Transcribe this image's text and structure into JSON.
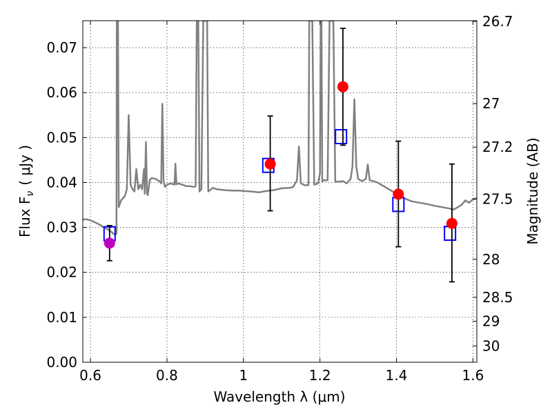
{
  "chart_data": {
    "type": "scatter",
    "xlabel": "Wavelength  λ (μm)",
    "ylabel_left": "Flux  F",
    "ylabel_left_sub": "ν",
    "ylabel_left_unit": "( μJy )",
    "ylabel_right": "Magnitude (AB)",
    "xlim": [
      0.58,
      1.61
    ],
    "ylim": [
      0.0,
      0.076
    ],
    "grid": true,
    "x_ticks": [
      {
        "value": 0.6,
        "label": "0.6"
      },
      {
        "value": 0.8,
        "label": "0.8"
      },
      {
        "value": 1.0,
        "label": "1"
      },
      {
        "value": 1.2,
        "label": "1.2"
      },
      {
        "value": 1.4,
        "label": "1.4"
      },
      {
        "value": 1.6,
        "label": "1.6"
      }
    ],
    "y_ticks": [
      {
        "value": 0.0,
        "label": "0.00"
      },
      {
        "value": 0.01,
        "label": "0.01"
      },
      {
        "value": 0.02,
        "label": "0.02"
      },
      {
        "value": 0.03,
        "label": "0.03"
      },
      {
        "value": 0.04,
        "label": "0.04"
      },
      {
        "value": 0.05,
        "label": "0.05"
      },
      {
        "value": 0.06,
        "label": "0.06"
      },
      {
        "value": 0.07,
        "label": "0.07"
      }
    ],
    "right_ticks": [
      {
        "value": 26.7,
        "label": "26.7"
      },
      {
        "value": 27.0,
        "label": "27"
      },
      {
        "value": 27.2,
        "label": "27.2"
      },
      {
        "value": 27.5,
        "label": "27.5"
      },
      {
        "value": 28.0,
        "label": "28"
      },
      {
        "value": 28.5,
        "label": "28.5"
      },
      {
        "value": 29.0,
        "label": "29"
      },
      {
        "value": 30.0,
        "label": "30"
      }
    ],
    "series": [
      {
        "kind": "line",
        "color": "#808080",
        "points": [
          [
            0.58,
            0.0318
          ],
          [
            0.59,
            0.0318
          ],
          [
            0.6,
            0.0316
          ],
          [
            0.61,
            0.0312
          ],
          [
            0.62,
            0.0308
          ],
          [
            0.63,
            0.0303
          ],
          [
            0.64,
            0.0298
          ],
          [
            0.65,
            0.0293
          ],
          [
            0.655,
            0.029
          ],
          [
            0.66,
            0.0286
          ],
          [
            0.665,
            0.0284
          ],
          [
            0.668,
            0.0286
          ],
          [
            0.669,
            0.076
          ],
          [
            0.672,
            0.076
          ],
          [
            0.674,
            0.0345
          ],
          [
            0.68,
            0.036
          ],
          [
            0.69,
            0.037
          ],
          [
            0.695,
            0.0385
          ],
          [
            0.7,
            0.055
          ],
          [
            0.705,
            0.0395
          ],
          [
            0.71,
            0.0385
          ],
          [
            0.715,
            0.038
          ],
          [
            0.72,
            0.043
          ],
          [
            0.725,
            0.0385
          ],
          [
            0.73,
            0.0395
          ],
          [
            0.735,
            0.0385
          ],
          [
            0.74,
            0.043
          ],
          [
            0.742,
            0.0375
          ],
          [
            0.745,
            0.049
          ],
          [
            0.748,
            0.0375
          ],
          [
            0.75,
            0.0372
          ],
          [
            0.755,
            0.0405
          ],
          [
            0.76,
            0.041
          ],
          [
            0.77,
            0.0408
          ],
          [
            0.78,
            0.0403
          ],
          [
            0.785,
            0.0398
          ],
          [
            0.788,
            0.0575
          ],
          [
            0.791,
            0.0403
          ],
          [
            0.795,
            0.039
          ],
          [
            0.8,
            0.0395
          ],
          [
            0.81,
            0.0398
          ],
          [
            0.82,
            0.0395
          ],
          [
            0.822,
            0.0442
          ],
          [
            0.825,
            0.0396
          ],
          [
            0.83,
            0.0398
          ],
          [
            0.84,
            0.0395
          ],
          [
            0.85,
            0.0392
          ],
          [
            0.86,
            0.0392
          ],
          [
            0.87,
            0.039
          ],
          [
            0.875,
            0.0392
          ],
          [
            0.878,
            0.076
          ],
          [
            0.882,
            0.076
          ],
          [
            0.885,
            0.038
          ],
          [
            0.89,
            0.0385
          ],
          [
            0.895,
            0.076
          ],
          [
            0.905,
            0.076
          ],
          [
            0.908,
            0.038
          ],
          [
            0.92,
            0.0388
          ],
          [
            0.93,
            0.0385
          ],
          [
            0.95,
            0.0383
          ],
          [
            0.97,
            0.0382
          ],
          [
            0.99,
            0.0382
          ],
          [
            1.0,
            0.0381
          ],
          [
            1.02,
            0.038
          ],
          [
            1.04,
            0.0378
          ],
          [
            1.06,
            0.0381
          ],
          [
            1.08,
            0.0383
          ],
          [
            1.09,
            0.0385
          ],
          [
            1.1,
            0.0387
          ],
          [
            1.12,
            0.0388
          ],
          [
            1.13,
            0.039
          ],
          [
            1.14,
            0.0405
          ],
          [
            1.145,
            0.048
          ],
          [
            1.15,
            0.0398
          ],
          [
            1.16,
            0.0394
          ],
          [
            1.17,
            0.0394
          ],
          [
            1.172,
            0.076
          ],
          [
            1.18,
            0.076
          ],
          [
            1.185,
            0.0395
          ],
          [
            1.195,
            0.0398
          ],
          [
            1.2,
            0.042
          ],
          [
            1.202,
            0.076
          ],
          [
            1.204,
            0.076
          ],
          [
            1.206,
            0.0402
          ],
          [
            1.21,
            0.0405
          ],
          [
            1.22,
            0.0405
          ],
          [
            1.225,
            0.076
          ],
          [
            1.235,
            0.076
          ],
          [
            1.24,
            0.0402
          ],
          [
            1.25,
            0.0402
          ],
          [
            1.26,
            0.0403
          ],
          [
            1.27,
            0.0398
          ],
          [
            1.28,
            0.0408
          ],
          [
            1.285,
            0.0435
          ],
          [
            1.29,
            0.0585
          ],
          [
            1.295,
            0.0435
          ],
          [
            1.3,
            0.0408
          ],
          [
            1.31,
            0.0403
          ],
          [
            1.32,
            0.0408
          ],
          [
            1.325,
            0.044
          ],
          [
            1.33,
            0.0405
          ],
          [
            1.34,
            0.0403
          ],
          [
            1.35,
            0.04
          ],
          [
            1.36,
            0.0395
          ],
          [
            1.38,
            0.0385
          ],
          [
            1.4,
            0.0375
          ],
          [
            1.42,
            0.0365
          ],
          [
            1.44,
            0.0358
          ],
          [
            1.46,
            0.0355
          ],
          [
            1.48,
            0.0352
          ],
          [
            1.5,
            0.0348
          ],
          [
            1.52,
            0.0345
          ],
          [
            1.54,
            0.0342
          ],
          [
            1.55,
            0.034
          ],
          [
            1.56,
            0.0345
          ],
          [
            1.57,
            0.035
          ],
          [
            1.58,
            0.036
          ],
          [
            1.59,
            0.0355
          ],
          [
            1.6,
            0.0363
          ],
          [
            1.61,
            0.0365
          ]
        ]
      },
      {
        "kind": "boxes",
        "color": "#0000ff",
        "points": [
          [
            0.65,
            0.0286
          ],
          [
            1.065,
            0.0438
          ],
          [
            1.255,
            0.0502
          ],
          [
            1.405,
            0.0351
          ],
          [
            1.54,
            0.0287
          ]
        ]
      },
      {
        "kind": "errorbars",
        "points": [
          {
            "x": 0.65,
            "y": 0.0265,
            "color": "#bf00bf",
            "ylo": 0.0226,
            "yhi": 0.0304
          },
          {
            "x": 1.07,
            "y": 0.0441,
            "color": "#ff0000",
            "ylo": 0.0337,
            "yhi": 0.0548
          },
          {
            "x": 1.26,
            "y": 0.0613,
            "color": "#ff0000",
            "ylo": 0.0483,
            "yhi": 0.0743
          },
          {
            "x": 1.405,
            "y": 0.0374,
            "color": "#ff0000",
            "ylo": 0.0257,
            "yhi": 0.0492
          },
          {
            "x": 1.545,
            "y": 0.0309,
            "color": "#ff0000",
            "ylo": 0.0179,
            "yhi": 0.0441
          }
        ]
      }
    ]
  }
}
